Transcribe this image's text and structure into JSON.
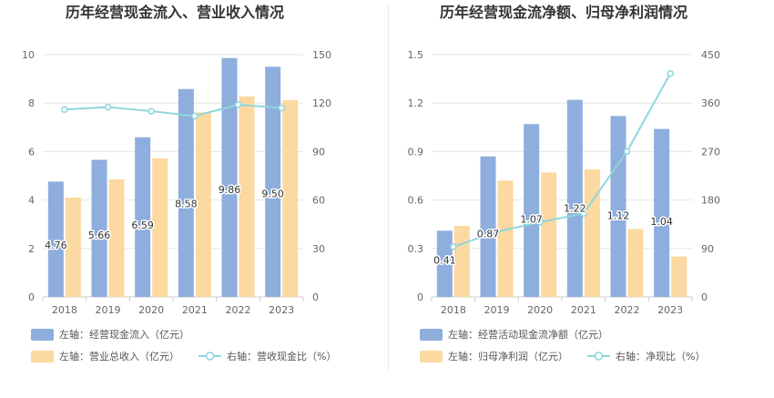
{
  "chart_data": [
    {
      "type": "bar",
      "title": "历年经营现金流入、营业收入情况",
      "categories": [
        "2018",
        "2019",
        "2020",
        "2021",
        "2022",
        "2023"
      ],
      "left_axis": {
        "min": 0,
        "max": 10,
        "ticks": [
          "0",
          "2",
          "4",
          "6",
          "8",
          "10"
        ]
      },
      "right_axis": {
        "min": 0,
        "max": 150,
        "ticks": [
          "0",
          "30",
          "60",
          "90",
          "120",
          "150"
        ]
      },
      "series": [
        {
          "name": "左轴：经营现金流入（亿元）",
          "type": "bar",
          "axis": "left",
          "color": "#8eaedd",
          "values": [
            4.76,
            5.66,
            6.59,
            8.58,
            9.86,
            9.5
          ],
          "labels": [
            "4.76",
            "5.66",
            "6.59",
            "8.58",
            "9.86",
            "9.50"
          ]
        },
        {
          "name": "左轴：营业总收入（亿元）",
          "type": "bar",
          "axis": "left",
          "color": "#fcd9a0",
          "values": [
            4.1,
            4.85,
            5.72,
            7.62,
            8.28,
            8.12
          ]
        },
        {
          "name": "右轴：营收现金比（%）",
          "type": "line",
          "axis": "right",
          "color": "#8ed6de",
          "values": [
            116,
            117.5,
            115,
            112,
            119,
            117
          ]
        }
      ]
    },
    {
      "type": "bar",
      "title": "历年经营现金流净额、归母净利润情况",
      "categories": [
        "2018",
        "2019",
        "2020",
        "2021",
        "2022",
        "2023"
      ],
      "left_axis": {
        "min": 0,
        "max": 1.5,
        "ticks": [
          "0",
          "0.3",
          "0.6",
          "0.9",
          "1.2",
          "1.5"
        ]
      },
      "right_axis": {
        "min": 0,
        "max": 450,
        "ticks": [
          "0",
          "90",
          "180",
          "270",
          "360",
          "450"
        ]
      },
      "series": [
        {
          "name": "左轴：经营活动现金流净额（亿元）",
          "type": "bar",
          "axis": "left",
          "color": "#8eaedd",
          "values": [
            0.41,
            0.87,
            1.07,
            1.22,
            1.12,
            1.04
          ],
          "labels": [
            "0.41",
            "0.87",
            "1.07",
            "1.22",
            "1.12",
            "1.04"
          ]
        },
        {
          "name": "左轴：归母净利润（亿元）",
          "type": "bar",
          "axis": "left",
          "color": "#fcd9a0",
          "values": [
            0.44,
            0.72,
            0.77,
            0.79,
            0.42,
            0.25
          ]
        },
        {
          "name": "右轴：净现比（%）",
          "type": "line",
          "axis": "right",
          "color": "#8ed6de",
          "values": [
            93,
            121,
            139,
            155,
            270,
            415
          ]
        }
      ]
    }
  ]
}
